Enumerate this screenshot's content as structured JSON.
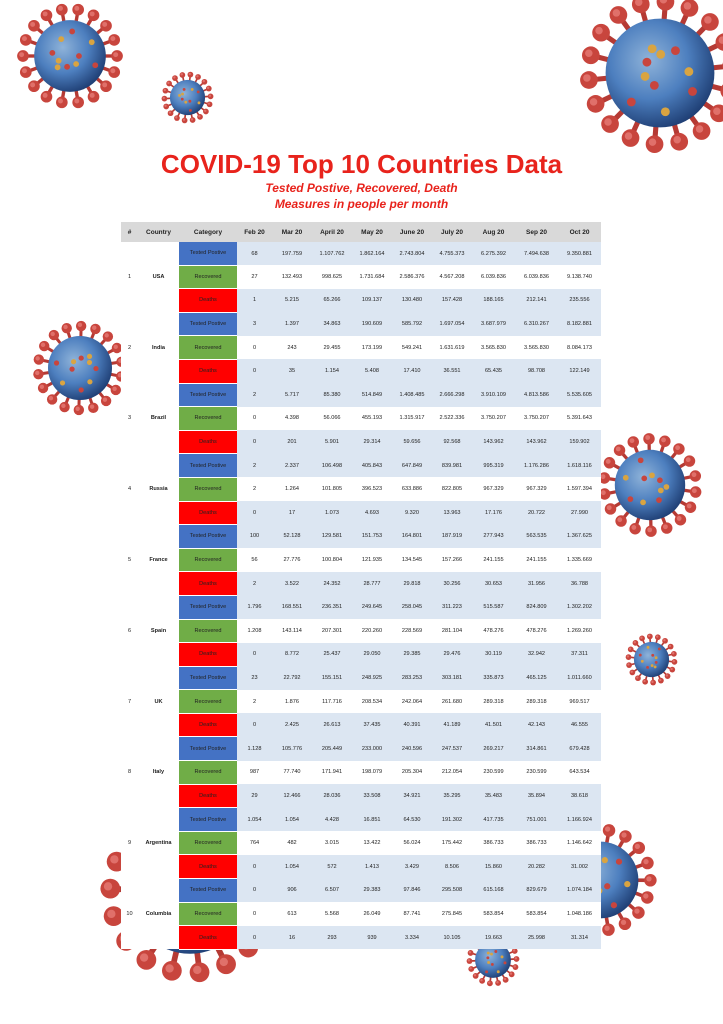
{
  "title": "COVID-19 Top 10 Countries Data",
  "subtitle_1": "Tested Postive, Recovered, Death",
  "subtitle_2": "Measures in people per month",
  "colors": {
    "title": "#e8231c",
    "tested": "#4472c4",
    "recovered": "#70ad47",
    "deaths": "#ff0000",
    "row_shade": "#dce6f2",
    "header": "#d9d9d9"
  },
  "decoration": "coronavirus-illustrations",
  "table": {
    "headers": [
      "#",
      "Country",
      "Category",
      "Feb 20",
      "Mar 20",
      "April 20",
      "May 20",
      "June 20",
      "July 20",
      "Aug 20",
      "Sep 20",
      "Oct 20"
    ],
    "categories": {
      "tested": "Tested Postive",
      "recovered": "Recovered",
      "deaths": "Deaths"
    },
    "countries": [
      {
        "rank": "1",
        "name": "USA",
        "tested": [
          "68",
          "197.759",
          "1.107.762",
          "1.862.164",
          "2.743.804",
          "4.755.373",
          "6.275.392",
          "7.494.638",
          "9.350.881"
        ],
        "recovered": [
          "27",
          "132.493",
          "998.625",
          "1.731.684",
          "2.586.376",
          "4.567.208",
          "6.039.836",
          "6.039.836",
          "9.138.740"
        ],
        "deaths": [
          "1",
          "5.215",
          "65.266",
          "109.137",
          "130.480",
          "157.428",
          "188.165",
          "212.141",
          "235.556"
        ]
      },
      {
        "rank": "2",
        "name": "India",
        "tested": [
          "3",
          "1.397",
          "34.863",
          "190.609",
          "585.792",
          "1.697.054",
          "3.687.979",
          "6.310.267",
          "8.182.881"
        ],
        "recovered": [
          "0",
          "243",
          "29.455",
          "173.199",
          "549.241",
          "1.631.619",
          "3.565.830",
          "3.565.830",
          "8.084.173"
        ],
        "deaths": [
          "0",
          "35",
          "1.154",
          "5.408",
          "17.410",
          "36.551",
          "65.435",
          "98.708",
          "122.149"
        ]
      },
      {
        "rank": "3",
        "name": "Brazil",
        "tested": [
          "2",
          "5.717",
          "85.380",
          "514.849",
          "1.408.485",
          "2.666.298",
          "3.910.109",
          "4.813.586",
          "5.535.605"
        ],
        "recovered": [
          "0",
          "4.398",
          "56.066",
          "455.193",
          "1.315.917",
          "2.522.336",
          "3.750.207",
          "3.750.207",
          "5.391.643"
        ],
        "deaths": [
          "0",
          "201",
          "5.901",
          "29.314",
          "59.656",
          "92.568",
          "143.962",
          "143.962",
          "159.902"
        ]
      },
      {
        "rank": "4",
        "name": "Russia",
        "tested": [
          "2",
          "2.337",
          "106.498",
          "405.843",
          "647.849",
          "839.981",
          "995.319",
          "1.176.286",
          "1.618.116"
        ],
        "recovered": [
          "2",
          "1.264",
          "101.805",
          "396.523",
          "633.886",
          "822.805",
          "967.329",
          "967.329",
          "1.597.394"
        ],
        "deaths": [
          "0",
          "17",
          "1.073",
          "4.693",
          "9.320",
          "13.963",
          "17.176",
          "20.722",
          "27.990"
        ]
      },
      {
        "rank": "5",
        "name": "France",
        "tested": [
          "100",
          "52.128",
          "129.581",
          "151.753",
          "164.801",
          "187.919",
          "277.943",
          "563.535",
          "1.367.625"
        ],
        "recovered": [
          "56",
          "27.776",
          "100.804",
          "121.935",
          "134.545",
          "157.266",
          "241.155",
          "241.155",
          "1.335.669"
        ],
        "deaths": [
          "2",
          "3.522",
          "24.352",
          "28.777",
          "29.818",
          "30.256",
          "30.653",
          "31.956",
          "36.788"
        ]
      },
      {
        "rank": "6",
        "name": "Spain",
        "tested": [
          "1.796",
          "168.551",
          "236.351",
          "249.645",
          "258.045",
          "311.223",
          "515.587",
          "824.809",
          "1.302.202"
        ],
        "recovered": [
          "1.208",
          "143.114",
          "207.301",
          "220.260",
          "228.569",
          "281.104",
          "478.276",
          "478.276",
          "1.269.260"
        ],
        "deaths": [
          "0",
          "8.772",
          "25.437",
          "29.050",
          "29.385",
          "29.476",
          "30.119",
          "32.942",
          "37.311"
        ]
      },
      {
        "rank": "7",
        "name": "UK",
        "tested": [
          "23",
          "22.792",
          "155.151",
          "248.925",
          "283.253",
          "303.181",
          "335.873",
          "465.125",
          "1.011.660"
        ],
        "recovered": [
          "2",
          "1.876",
          "117.716",
          "208.534",
          "242.064",
          "261.680",
          "289.318",
          "289.318",
          "969.517"
        ],
        "deaths": [
          "0",
          "2.425",
          "26.613",
          "37.435",
          "40.391",
          "41.189",
          "41.501",
          "42.143",
          "46.555"
        ]
      },
      {
        "rank": "8",
        "name": "Italy",
        "tested": [
          "1.128",
          "105.776",
          "205.449",
          "233.000",
          "240.596",
          "247.537",
          "269.217",
          "314.861",
          "679.428"
        ],
        "recovered": [
          "987",
          "77.740",
          "171.941",
          "198.079",
          "205.304",
          "212.054",
          "230.599",
          "230.599",
          "643.534"
        ],
        "deaths": [
          "29",
          "12.466",
          "28.036",
          "33.508",
          "34.921",
          "35.295",
          "35.483",
          "35.894",
          "38.618"
        ]
      },
      {
        "rank": "9",
        "name": "Argentina",
        "tested": [
          "1.054",
          "1.054",
          "4.428",
          "16.851",
          "64.530",
          "191.302",
          "417.735",
          "751.001",
          "1.166.924"
        ],
        "recovered": [
          "764",
          "482",
          "3.015",
          "13.422",
          "56.024",
          "175.442",
          "386.733",
          "386.733",
          "1.146.642"
        ],
        "deaths": [
          "0",
          "1.054",
          "572",
          "1.413",
          "3.429",
          "8.506",
          "15.860",
          "20.282",
          "31.002"
        ]
      },
      {
        "rank": "10",
        "name": "Columbia",
        "tested": [
          "0",
          "906",
          "6.507",
          "29.383",
          "97.846",
          "295.508",
          "615.168",
          "829.679",
          "1.074.184"
        ],
        "recovered": [
          "0",
          "613",
          "5.568",
          "26.049",
          "87.741",
          "275.845",
          "583.854",
          "583.854",
          "1.048.186"
        ],
        "deaths": [
          "0",
          "16",
          "293",
          "939",
          "3.334",
          "10.105",
          "19.663",
          "25.998",
          "31.314"
        ]
      }
    ]
  }
}
